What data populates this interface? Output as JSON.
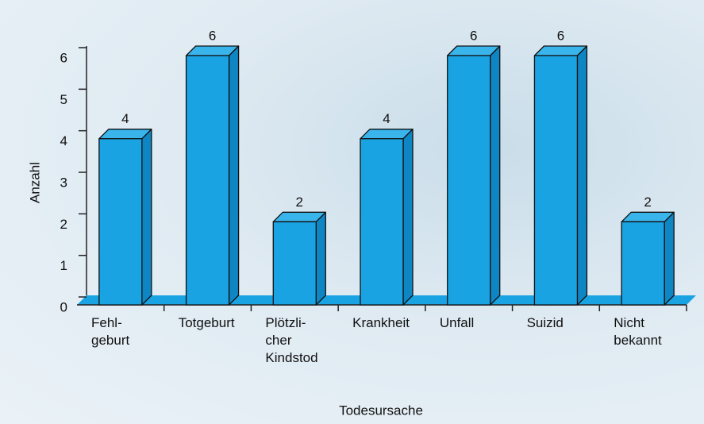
{
  "chart_data": {
    "type": "bar3d",
    "x_label": "Todesursache",
    "y_label": "Anzahl",
    "categories": [
      "Fehl-\ngeburt",
      "Totgeburt",
      "Plötzli-\ncher\nKindstod",
      "Krankheit",
      "Unfall",
      "Suizid",
      "Nicht\nbekannt"
    ],
    "values": [
      4,
      6,
      2,
      4,
      6,
      6,
      2
    ],
    "color": "#1aa3e3",
    "ylim": [
      0,
      6
    ],
    "yticks": [
      0,
      1,
      2,
      3,
      4,
      5,
      6
    ]
  }
}
